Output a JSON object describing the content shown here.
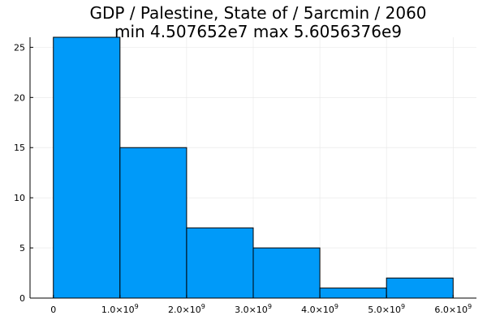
{
  "chart_data": {
    "type": "bar",
    "title_line1": "GDP / Palestine, State of / 5arcmin / 2060",
    "title_line2": "min 4.507652e7  max 5.6056376e9",
    "bins": [
      {
        "x0": 0,
        "x1": 1000000000,
        "count": 26
      },
      {
        "x0": 1000000000,
        "x1": 2000000000,
        "count": 15
      },
      {
        "x0": 2000000000,
        "x1": 3000000000,
        "count": 7
      },
      {
        "x0": 3000000000,
        "x1": 4000000000,
        "count": 5
      },
      {
        "x0": 4000000000,
        "x1": 5000000000,
        "count": 1
      },
      {
        "x0": 5000000000,
        "x1": 6000000000,
        "count": 2
      }
    ],
    "xlim": [
      -350000000,
      6350000000
    ],
    "ylim": [
      0,
      26
    ],
    "x_ticks": [
      {
        "value": 0,
        "mantissa": "0",
        "exp": ""
      },
      {
        "value": 1000000000,
        "mantissa": "1.0×10",
        "exp": "9"
      },
      {
        "value": 2000000000,
        "mantissa": "2.0×10",
        "exp": "9"
      },
      {
        "value": 3000000000,
        "mantissa": "3.0×10",
        "exp": "9"
      },
      {
        "value": 4000000000,
        "mantissa": "4.0×10",
        "exp": "9"
      },
      {
        "value": 5000000000,
        "mantissa": "5.0×10",
        "exp": "9"
      },
      {
        "value": 6000000000,
        "mantissa": "6.0×10",
        "exp": "9"
      }
    ],
    "y_ticks": [
      0,
      5,
      10,
      15,
      20,
      25
    ],
    "grid": true,
    "legend": "none",
    "bar_color": "#009af9"
  }
}
